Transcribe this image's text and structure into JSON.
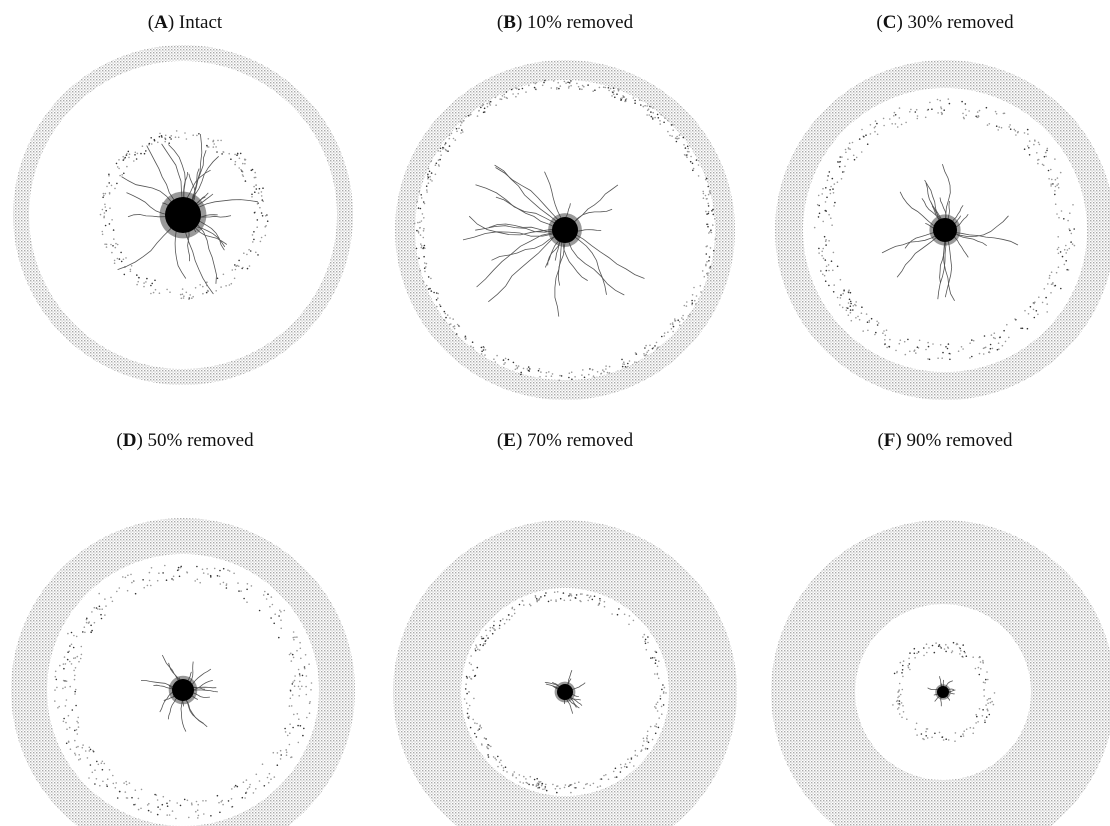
{
  "panels": [
    {
      "label": [
        "(",
        "A",
        ") Intact"
      ]
    },
    {
      "label": [
        "(",
        "B",
        ") 10% removed"
      ]
    },
    {
      "label": [
        "(",
        "C",
        ") 30% removed"
      ]
    },
    {
      "label": [
        "(",
        "D",
        ") 50% removed"
      ]
    },
    {
      "label": [
        "(",
        "E",
        ") 70% removed"
      ]
    },
    {
      "label": [
        "(",
        "F",
        ") 90% removed"
      ]
    }
  ]
}
